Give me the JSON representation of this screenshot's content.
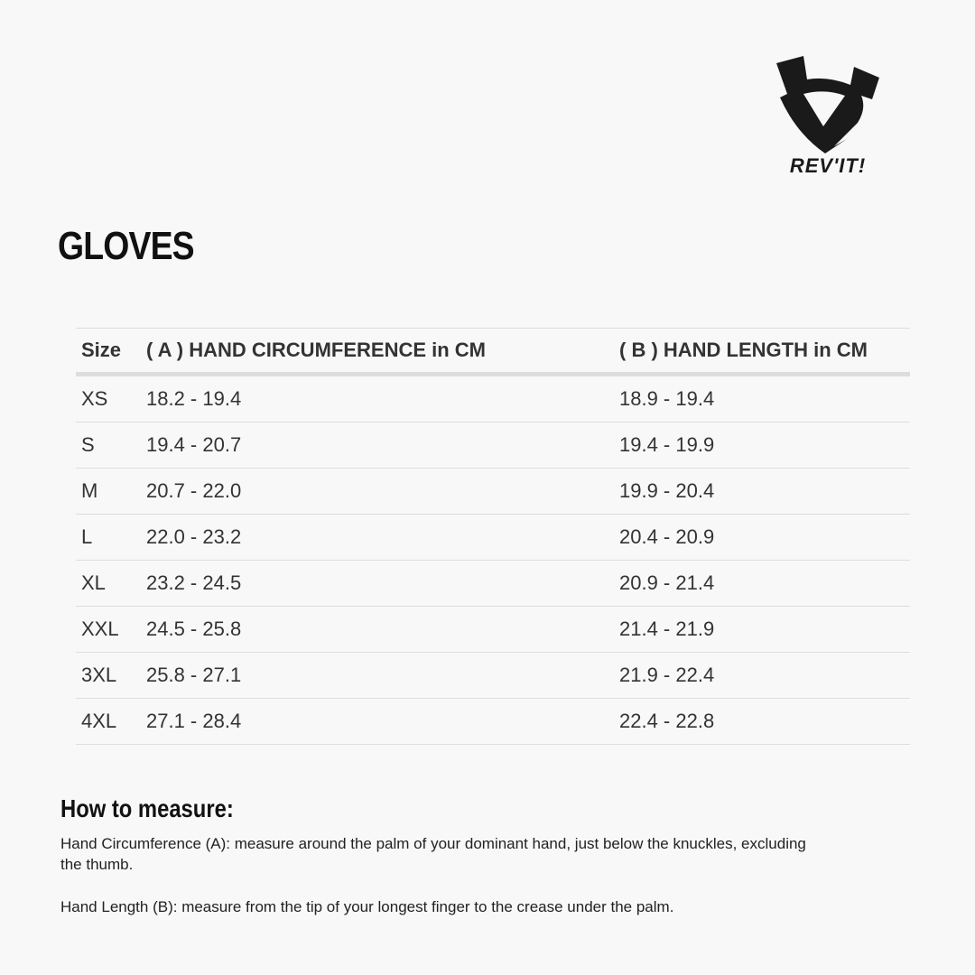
{
  "brand": {
    "logo_text": "REV'IT!"
  },
  "title": "GLOVES",
  "table": {
    "headers": [
      "Size",
      "( A ) HAND CIRCUMFERENCE in CM",
      "( B ) HAND LENGTH in CM"
    ],
    "rows": [
      [
        "XS",
        "18.2 - 19.4",
        "18.9 - 19.4"
      ],
      [
        "S",
        "19.4 - 20.7",
        "19.4 - 19.9"
      ],
      [
        "M",
        "20.7 - 22.0",
        "19.9 - 20.4"
      ],
      [
        "L",
        "22.0 - 23.2",
        "20.4 - 20.9"
      ],
      [
        "XL",
        "23.2 - 24.5",
        "20.9 - 21.4"
      ],
      [
        "XXL",
        "24.5 - 25.8",
        "21.4 - 21.9"
      ],
      [
        "3XL",
        "25.8 - 27.1",
        "21.9 - 22.4"
      ],
      [
        "4XL",
        "27.1 - 28.4",
        "22.4 - 22.8"
      ]
    ]
  },
  "how_to": {
    "heading": "How to measure:",
    "circumference": "Hand Circumference (A): measure around the palm of your dominant hand, just below the knuckles, excluding the thumb.",
    "length": "Hand Length (B): measure from the tip of your longest finger to the crease under the palm."
  }
}
